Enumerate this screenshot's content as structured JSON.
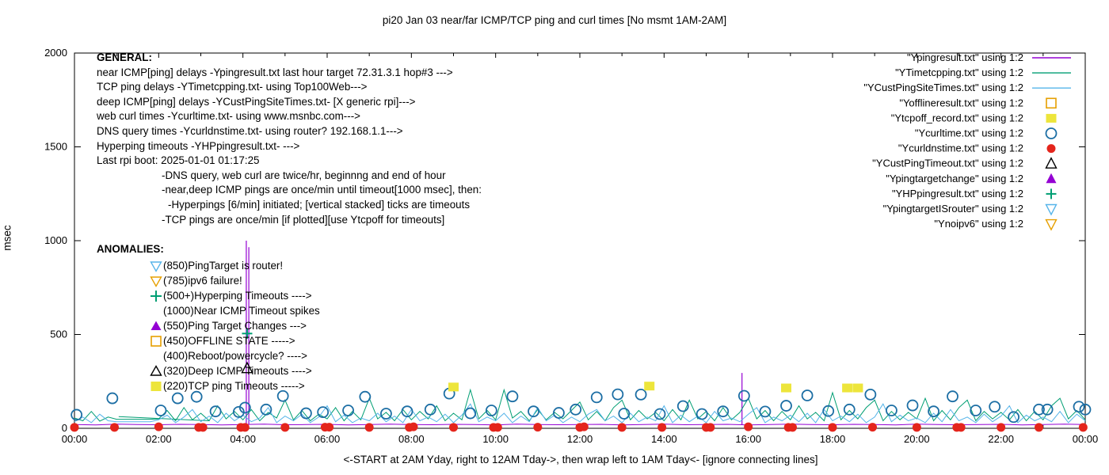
{
  "title": "pi20 Jan 03  near/far ICMP/TCP ping and curl times [No msmt 1AM-2AM]",
  "chart_data": {
    "type": "line",
    "title": "pi20 Jan 03  near/far ICMP/TCP ping and curl times [No msmt 1AM-2AM]",
    "ylabel": "msec",
    "ylim": [
      0,
      2000
    ],
    "xlim_hours": [
      0,
      24
    ],
    "y_ticks": [
      0,
      500,
      1000,
      1500,
      2000
    ],
    "x_tick_labels": [
      "00:00",
      "02:00",
      "04:00",
      "06:00",
      "08:00",
      "10:00",
      "12:00",
      "14:00",
      "16:00",
      "18:00",
      "20:00",
      "22:00",
      "00:00"
    ],
    "caption": "<-START at 2AM Yday, right to 12AM Tday->, then wrap left to 1AM Tday<- [ignore connecting lines]",
    "grid": false,
    "legend_position": "inside-top-right",
    "line_series": [
      {
        "name": "Ypingresult",
        "color": "#9400d3",
        "x0": 0,
        "dx": 0.5,
        "base": 20,
        "values": [
          20,
          18,
          22,
          20,
          19,
          21,
          20,
          18,
          20,
          22,
          19,
          20,
          21,
          18,
          20,
          22,
          20,
          19,
          21,
          20,
          18,
          22,
          20,
          19,
          20,
          21,
          18,
          20,
          22,
          19,
          20,
          21,
          18,
          20,
          22,
          20,
          19,
          21,
          20,
          18,
          22,
          20,
          19,
          20,
          21,
          18,
          20,
          22,
          20
        ],
        "spikes": [
          [
            4.08,
            1000
          ],
          [
            4.14,
            965
          ],
          [
            15.85,
            295
          ]
        ]
      },
      {
        "name": "YTimetcpping",
        "color": "#009e73",
        "x0": 0,
        "dx": 0.2,
        "base": 40,
        "values": [
          55,
          40,
          90,
          38,
          60,
          48,
          48,
          48,
          48,
          48,
          50,
          95,
          40,
          110,
          45,
          80,
          40,
          120,
          50,
          90,
          45,
          100,
          40,
          85,
          55,
          150,
          45,
          95,
          40,
          75,
          50,
          110,
          40,
          90,
          45,
          160,
          50,
          85,
          40,
          100,
          45,
          90,
          50,
          120,
          40,
          80,
          45,
          205,
          50,
          95,
          45,
          205,
          55,
          90,
          40,
          100,
          45,
          85,
          50,
          95,
          140,
          45,
          90,
          40,
          110,
          150,
          45,
          95,
          50,
          85,
          40,
          100,
          45,
          150,
          50,
          90,
          40,
          110,
          45,
          85,
          160,
          50,
          95,
          40,
          90,
          45,
          120,
          50,
          85,
          40,
          190,
          45,
          95,
          50,
          110,
          150,
          40,
          90,
          45,
          85,
          50,
          160,
          40,
          95,
          45,
          110,
          150,
          40,
          90,
          50,
          85,
          45,
          100,
          40,
          90,
          45,
          120,
          160,
          50,
          95,
          45
        ],
        "spikes": [],
        "segments": [
          [
            [
              1.05,
              62
            ],
            [
              3.2,
              40
            ]
          ]
        ]
      },
      {
        "name": "YCustPingSiteTimes",
        "color": "#56b4e9",
        "x0": 0,
        "dx": 0.2,
        "base": 30,
        "values": [
          35,
          60,
          30,
          75,
          40,
          35,
          35,
          35,
          35,
          35,
          45,
          70,
          30,
          60,
          100,
          35,
          65,
          30,
          80,
          40,
          70,
          35,
          55,
          110,
          30,
          65,
          40,
          75,
          30,
          60,
          120,
          35,
          70,
          30,
          55,
          40,
          80,
          35,
          65,
          30,
          100,
          40,
          60,
          35,
          75,
          30,
          70,
          130,
          35,
          60,
          40,
          80,
          30,
          65,
          35,
          110,
          40,
          70,
          30,
          60,
          35,
          75,
          100,
          40,
          65,
          30,
          80,
          35,
          60,
          40,
          120,
          30,
          70,
          35,
          65,
          30,
          90,
          40,
          55,
          35,
          75,
          110,
          30,
          60,
          40,
          70,
          35,
          80,
          30,
          100,
          40,
          65,
          35,
          75,
          30,
          60,
          130,
          35,
          70,
          40,
          55,
          30,
          80,
          35,
          100,
          40,
          60,
          30,
          75,
          35,
          65,
          120,
          30,
          70,
          40,
          60,
          35,
          90,
          30,
          75,
          40
        ],
        "spikes": []
      }
    ],
    "scatter_series": [
      {
        "name": "Ycurltime",
        "marker": "circle_open",
        "color": "#1c6ea4",
        "points": [
          [
            0.05,
            72
          ],
          [
            0.9,
            160
          ],
          [
            2.05,
            95
          ],
          [
            2.45,
            160
          ],
          [
            2.9,
            168
          ],
          [
            3.35,
            90
          ],
          [
            3.9,
            87
          ],
          [
            4.05,
            110
          ],
          [
            4.55,
            100
          ],
          [
            4.95,
            172
          ],
          [
            5.5,
            80
          ],
          [
            5.9,
            86
          ],
          [
            6.5,
            95
          ],
          [
            6.9,
            168
          ],
          [
            7.4,
            78
          ],
          [
            7.9,
            90
          ],
          [
            8.45,
            100
          ],
          [
            8.9,
            185
          ],
          [
            9.4,
            80
          ],
          [
            9.9,
            95
          ],
          [
            10.4,
            170
          ],
          [
            10.9,
            90
          ],
          [
            11.5,
            82
          ],
          [
            11.9,
            100
          ],
          [
            12.4,
            165
          ],
          [
            12.9,
            181
          ],
          [
            13.05,
            78
          ],
          [
            13.45,
            180
          ],
          [
            13.9,
            76
          ],
          [
            14.45,
            118
          ],
          [
            14.9,
            76
          ],
          [
            15.4,
            90
          ],
          [
            15.9,
            173
          ],
          [
            16.4,
            89
          ],
          [
            16.9,
            120
          ],
          [
            17.4,
            175
          ],
          [
            17.9,
            92
          ],
          [
            18.4,
            100
          ],
          [
            18.9,
            180
          ],
          [
            19.4,
            95
          ],
          [
            19.9,
            122
          ],
          [
            20.4,
            90
          ],
          [
            20.85,
            170
          ],
          [
            21.4,
            95
          ],
          [
            21.85,
            115
          ],
          [
            22.3,
            60
          ],
          [
            22.9,
            100
          ],
          [
            23.1,
            100
          ],
          [
            23.85,
            115
          ],
          [
            24.0,
            100
          ]
        ]
      },
      {
        "name": "Ycurldnstime",
        "marker": "circle_filled",
        "color": "#e4251c",
        "points": [
          [
            0,
            5
          ],
          [
            0.95,
            5
          ],
          [
            2,
            8
          ],
          [
            2.95,
            5
          ],
          [
            3.05,
            5
          ],
          [
            3.95,
            5
          ],
          [
            4.05,
            5
          ],
          [
            5,
            5
          ],
          [
            5.95,
            6
          ],
          [
            6.05,
            6
          ],
          [
            7,
            5
          ],
          [
            7.95,
            5
          ],
          [
            8.05,
            8
          ],
          [
            9,
            5
          ],
          [
            9.95,
            5
          ],
          [
            10.05,
            5
          ],
          [
            11,
            6
          ],
          [
            12,
            5
          ],
          [
            12.1,
            8
          ],
          [
            13,
            5
          ],
          [
            13.95,
            5
          ],
          [
            15,
            5
          ],
          [
            15.1,
            5
          ],
          [
            16,
            8
          ],
          [
            16.95,
            5
          ],
          [
            17.05,
            5
          ],
          [
            18,
            5
          ],
          [
            18.95,
            6
          ],
          [
            20,
            5
          ],
          [
            20.95,
            5
          ],
          [
            21.05,
            5
          ],
          [
            22,
            5
          ],
          [
            22.9,
            5
          ],
          [
            23.95,
            5
          ]
        ]
      },
      {
        "name": "Ytcpoff_record",
        "marker": "square_filled",
        "color": "#ede53b",
        "points": [
          [
            9.0,
            220
          ],
          [
            13.65,
            225
          ],
          [
            16.9,
            215
          ],
          [
            18.35,
            215
          ],
          [
            18.6,
            215
          ]
        ]
      },
      {
        "name": "YCustPingTimeout",
        "marker": "tri_up_open",
        "color": "#000000",
        "points": [
          [
            4.1,
            320
          ]
        ]
      },
      {
        "name": "YHPpingresult",
        "marker": "plus",
        "color": "#009e73",
        "points": [
          [
            4.1,
            505
          ]
        ]
      }
    ],
    "legend": [
      {
        "label": "\"Ypingresult.txt\" using 1:2",
        "marker": "line",
        "color": "#9400d3"
      },
      {
        "label": "\"YTimetcpping.txt\" using 1:2",
        "marker": "line",
        "color": "#009e73"
      },
      {
        "label": "\"YCustPingSiteTimes.txt\" using 1:2",
        "marker": "line",
        "color": "#56b4e9"
      },
      {
        "label": "\"Yofflineresult.txt\" using 1:2",
        "marker": "square_open",
        "color": "#e69f00"
      },
      {
        "label": "\"Ytcpoff_record.txt\" using 1:2",
        "marker": "square_filled",
        "color": "#ede53b"
      },
      {
        "label": "\"Ycurltime.txt\" using 1:2",
        "marker": "circle_open",
        "color": "#1c6ea4"
      },
      {
        "label": "\"Ycurldnstime.txt\" using 1:2",
        "marker": "circle_filled",
        "color": "#e4251c"
      },
      {
        "label": "\"YCustPingTimeout.txt\" using 1:2",
        "marker": "tri_up_open",
        "color": "#000000"
      },
      {
        "label": "\"Ypingtargetchange\" using 1:2",
        "marker": "tri_up_filled",
        "color": "#9400d3"
      },
      {
        "label": "\"YHPpingresult.txt\" using 1:2",
        "marker": "plus",
        "color": "#009e73"
      },
      {
        "label": "\"YpingtargetISrouter\" using 1:2",
        "marker": "tri_down_open",
        "color": "#56b4e9"
      },
      {
        "label": "\"Ynoipv6\" using 1:2",
        "marker": "tri_down_open",
        "color": "#e69f00"
      }
    ]
  },
  "general": {
    "header": "GENERAL:",
    "lines": [
      {
        "text": "near ICMP[ping] delays -Ypingresult.txt last hour target 72.31.3.1 hop#3 --->",
        "indent": 0
      },
      {
        "text": "TCP ping delays -YTimetcpping.txt- using Top100Web--->",
        "indent": 0
      },
      {
        "text": "deep ICMP[ping] delays -YCustPingSiteTimes.txt- [X generic rpi]--->",
        "indent": 0
      },
      {
        "text": "web curl times -Ycurltime.txt- using www.msnbc.com--->",
        "indent": 0
      },
      {
        "text": "DNS query times -Ycurldnstime.txt- using router? 192.168.1.1--->",
        "indent": 0
      },
      {
        "text": "Hyperping timeouts -YHPpingresult.txt- --->",
        "indent": 0
      },
      {
        "text": "Last rpi boot: 2025-01-01 01:17:25",
        "indent": 0
      },
      {
        "text": "-DNS query, web curl are twice/hr, beginnng and end of hour",
        "indent": 82
      },
      {
        "text": "-near,deep ICMP pings are once/min until timeout[1000 msec], then:",
        "indent": 82
      },
      {
        "text": "-Hyperpings [6/min] initiated; [vertical stacked] ticks are timeouts",
        "indent": 90
      },
      {
        "text": "-TCP pings are once/min [if plotted][use Ytcpoff for timeouts]",
        "indent": 82
      }
    ]
  },
  "anomalies": {
    "header": "ANOMALIES:",
    "rows": [
      {
        "icon": "tri_down_open",
        "color": "#56b4e9",
        "text": "(850)PingTarget is router!"
      },
      {
        "icon": "tri_down_open",
        "color": "#e69f00",
        "text": "(785)ipv6 failure!"
      },
      {
        "icon": "plus",
        "color": "#009e73",
        "text": "(500+)Hyperping Timeouts ---->"
      },
      {
        "icon": "none",
        "color": "#000000",
        "text": "(1000)Near ICMP Timeout spikes"
      },
      {
        "icon": "tri_up_filled",
        "color": "#9400d3",
        "text": "(550)Ping Target Changes --->"
      },
      {
        "icon": "square_open",
        "color": "#e69f00",
        "text": "(450)OFFLINE STATE ----->"
      },
      {
        "icon": "none",
        "color": "#000000",
        "text": "(400)Reboot/powercycle? ---->"
      },
      {
        "icon": "tri_up_open",
        "color": "#000000",
        "text": "(320)Deep ICMP Timeouts ---->"
      },
      {
        "icon": "square_filled",
        "color": "#ede53b",
        "text": "(220)TCP ping Timeouts ----->"
      }
    ]
  }
}
